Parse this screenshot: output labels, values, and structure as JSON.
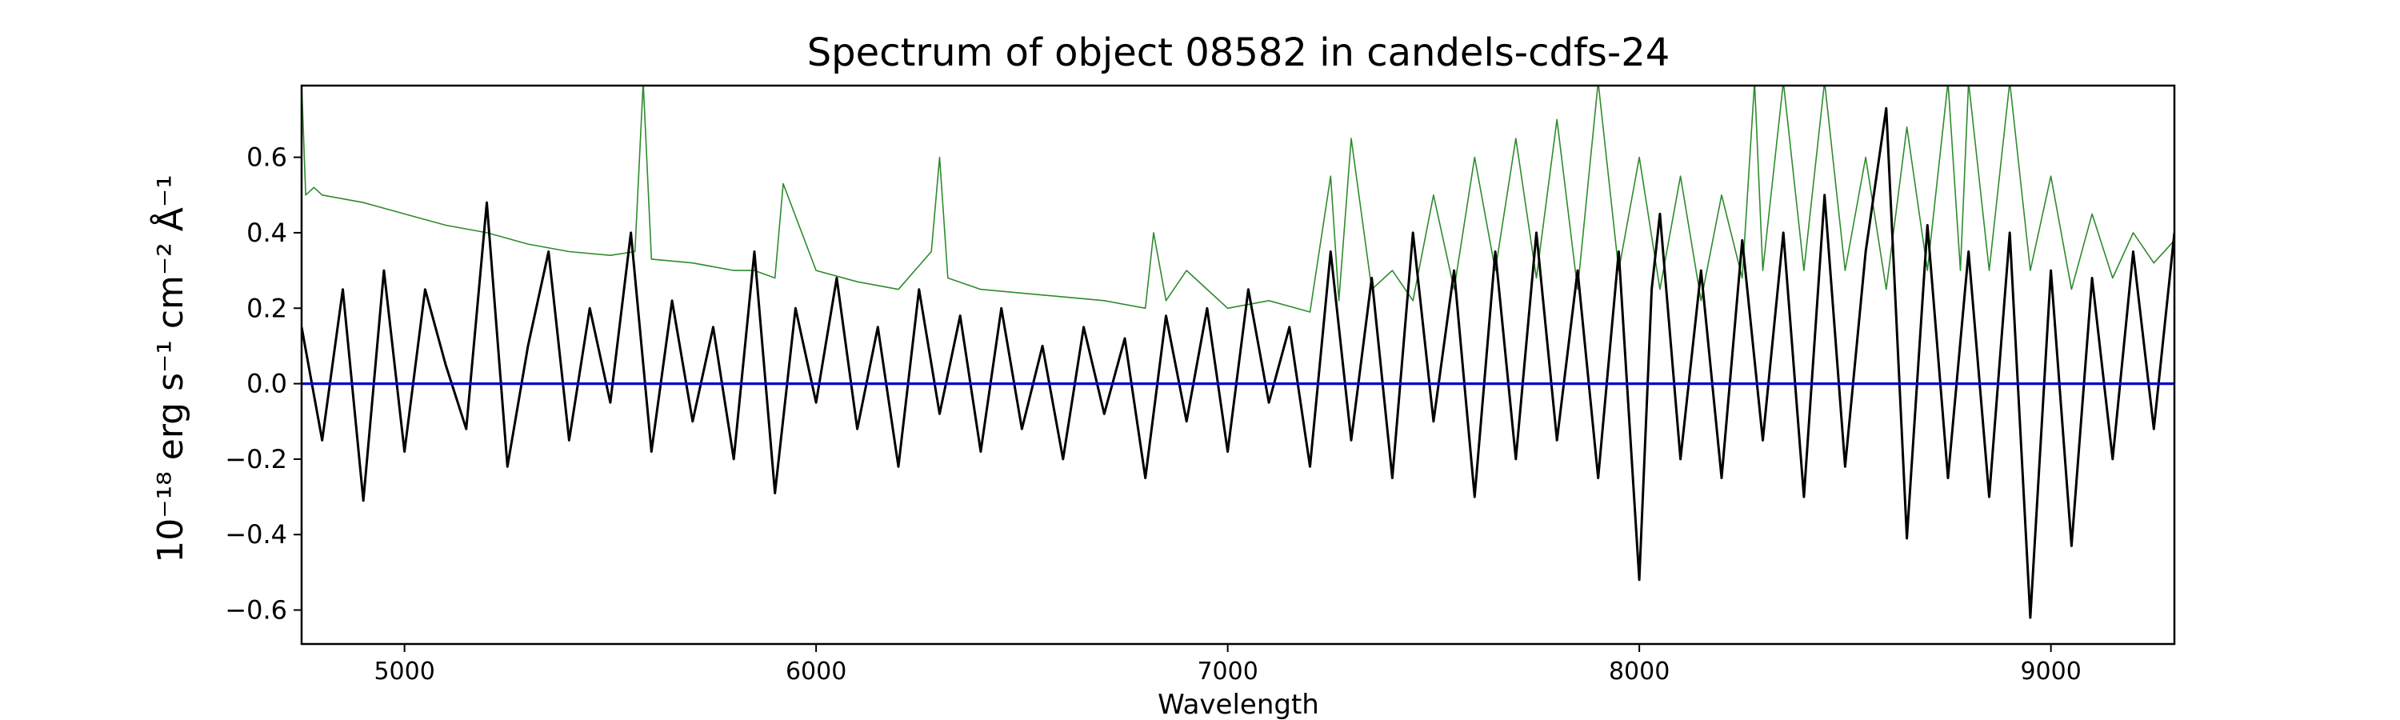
{
  "chart_data": {
    "type": "line",
    "title": "Spectrum of object 08582 in candels-cdfs-24",
    "xlabel": "Wavelength",
    "ylabel": "10⁻¹⁸ erg s⁻¹ cm⁻² Å⁻¹",
    "xlim": [
      4750,
      9300
    ],
    "ylim": [
      -0.69,
      0.79
    ],
    "xticks": [
      5000,
      6000,
      7000,
      8000,
      9000
    ],
    "xtick_labels": [
      "5000",
      "6000",
      "7000",
      "8000",
      "9000"
    ],
    "yticks": [
      -0.6,
      -0.4,
      -0.2,
      0.0,
      0.2,
      0.4,
      0.6
    ],
    "ytick_labels": [
      "−0.6",
      "−0.4",
      "−0.2",
      "0.0",
      "0.2",
      "0.4",
      "0.6"
    ],
    "grid": false,
    "legend": "none",
    "colors": {
      "flux": "#000000",
      "error": "#2e8b2e",
      "zero": "#0000cc"
    },
    "series": [
      {
        "key": "flux",
        "x": [
          4750,
          4800,
          4850,
          4900,
          4950,
          5000,
          5050,
          5100,
          5150,
          5200,
          5250,
          5300,
          5350,
          5400,
          5450,
          5500,
          5550,
          5600,
          5650,
          5700,
          5750,
          5800,
          5850,
          5900,
          5950,
          6000,
          6050,
          6100,
          6150,
          6200,
          6250,
          6300,
          6350,
          6400,
          6450,
          6500,
          6550,
          6600,
          6650,
          6700,
          6750,
          6800,
          6850,
          6900,
          6950,
          7000,
          7050,
          7100,
          7150,
          7200,
          7250,
          7300,
          7350,
          7400,
          7450,
          7500,
          7550,
          7600,
          7650,
          7700,
          7750,
          7800,
          7850,
          7900,
          7950,
          8000,
          8030,
          8050,
          8100,
          8150,
          8200,
          8250,
          8300,
          8350,
          8400,
          8450,
          8500,
          8550,
          8600,
          8650,
          8700,
          8750,
          8800,
          8850,
          8900,
          8950,
          9000,
          9050,
          9100,
          9150,
          9200,
          9250,
          9300
        ],
        "y": [
          0.15,
          -0.15,
          0.25,
          -0.31,
          0.3,
          -0.18,
          0.25,
          0.05,
          -0.12,
          0.48,
          -0.22,
          0.1,
          0.35,
          -0.15,
          0.2,
          -0.05,
          0.4,
          -0.18,
          0.22,
          -0.1,
          0.15,
          -0.2,
          0.35,
          -0.29,
          0.2,
          -0.05,
          0.28,
          -0.12,
          0.15,
          -0.22,
          0.25,
          -0.08,
          0.18,
          -0.18,
          0.2,
          -0.12,
          0.1,
          -0.2,
          0.15,
          -0.08,
          0.12,
          -0.25,
          0.18,
          -0.1,
          0.2,
          -0.18,
          0.25,
          -0.05,
          0.15,
          -0.22,
          0.35,
          -0.15,
          0.28,
          -0.25,
          0.4,
          -0.1,
          0.3,
          -0.3,
          0.35,
          -0.2,
          0.4,
          -0.15,
          0.3,
          -0.25,
          0.35,
          -0.52,
          0.25,
          0.45,
          -0.2,
          0.3,
          -0.25,
          0.38,
          -0.15,
          0.4,
          -0.3,
          0.5,
          -0.22,
          0.35,
          0.73,
          -0.41,
          0.42,
          -0.25,
          0.35,
          -0.3,
          0.4,
          -0.62,
          0.3,
          -0.43,
          0.28,
          -0.2,
          0.35,
          -0.12,
          0.4
        ]
      },
      {
        "key": "error",
        "x": [
          4750,
          4760,
          4780,
          4800,
          4900,
          5000,
          5100,
          5200,
          5300,
          5400,
          5500,
          5560,
          5580,
          5600,
          5700,
          5800,
          5850,
          5900,
          5920,
          6000,
          6100,
          6200,
          6280,
          6300,
          6320,
          6400,
          6500,
          6600,
          6700,
          6800,
          6820,
          6850,
          6900,
          7000,
          7100,
          7200,
          7250,
          7270,
          7300,
          7350,
          7400,
          7450,
          7500,
          7550,
          7600,
          7650,
          7700,
          7750,
          7800,
          7850,
          7900,
          7950,
          8000,
          8050,
          8100,
          8150,
          8200,
          8250,
          8280,
          8300,
          8350,
          8400,
          8450,
          8500,
          8550,
          8600,
          8650,
          8700,
          8750,
          8780,
          8800,
          8850,
          8900,
          8950,
          9000,
          9050,
          9100,
          9150,
          9200,
          9250,
          9300
        ],
        "y": [
          0.8,
          0.5,
          0.52,
          0.5,
          0.48,
          0.45,
          0.42,
          0.4,
          0.37,
          0.35,
          0.34,
          0.35,
          0.8,
          0.33,
          0.32,
          0.3,
          0.3,
          0.28,
          0.53,
          0.3,
          0.27,
          0.25,
          0.35,
          0.6,
          0.28,
          0.25,
          0.24,
          0.23,
          0.22,
          0.2,
          0.4,
          0.22,
          0.3,
          0.2,
          0.22,
          0.19,
          0.55,
          0.22,
          0.65,
          0.25,
          0.3,
          0.22,
          0.5,
          0.25,
          0.6,
          0.3,
          0.65,
          0.28,
          0.7,
          0.25,
          0.8,
          0.3,
          0.6,
          0.25,
          0.55,
          0.22,
          0.5,
          0.28,
          0.8,
          0.3,
          0.8,
          0.3,
          0.8,
          0.3,
          0.6,
          0.25,
          0.68,
          0.3,
          0.8,
          0.3,
          0.8,
          0.3,
          0.8,
          0.3,
          0.55,
          0.25,
          0.45,
          0.28,
          0.4,
          0.32,
          0.38
        ]
      },
      {
        "key": "zero",
        "x": [
          4750,
          9300
        ],
        "y": [
          0.0,
          0.0
        ]
      }
    ]
  }
}
